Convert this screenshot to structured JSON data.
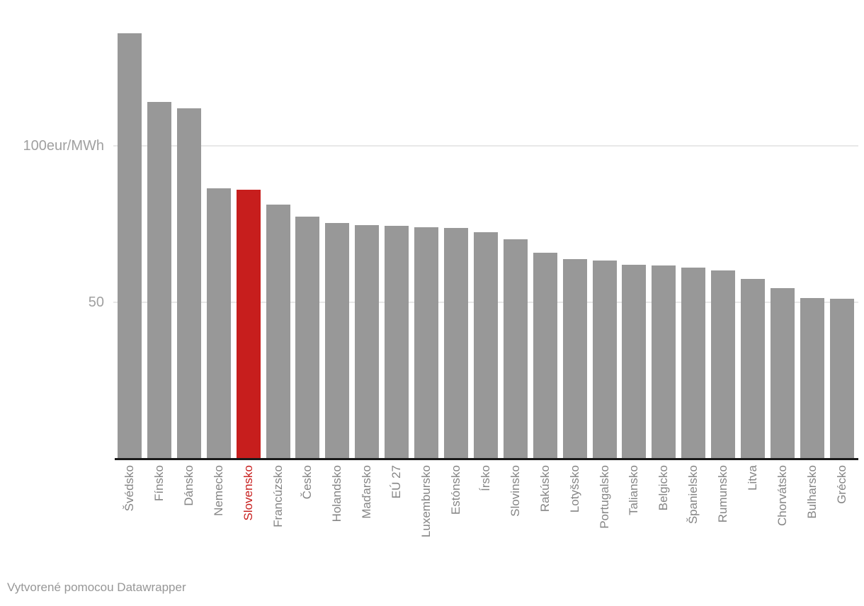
{
  "chart_data": {
    "type": "bar",
    "title": "",
    "xlabel": "",
    "ylabel": "",
    "unit": "eur/MWh",
    "categories": [
      "Švédsko",
      "Fínsko",
      "Dánsko",
      "Nemecko",
      "Slovensko",
      "Francúzsko",
      "Česko",
      "Holandsko",
      "Maďarsko",
      "EÚ 27",
      "Luxembursko",
      "Estónsko",
      "Írsko",
      "Slovinsko",
      "Rakúsko",
      "Lotyšsko",
      "Portugalsko",
      "Taliansko",
      "Belgicko",
      "Španielsko",
      "Rumunsko",
      "Litva",
      "Chorvátsko",
      "Bulharsko",
      "Grécko"
    ],
    "values": [
      136,
      114,
      112,
      86.5,
      86,
      81.2,
      77.4,
      75.3,
      74.7,
      74.4,
      74.1,
      73.7,
      72.3,
      70.1,
      65.9,
      63.7,
      63.3,
      62,
      61.7,
      61,
      60.2,
      57.4,
      54.5,
      51.3,
      51.1
    ],
    "ylim": [
      0,
      137
    ],
    "grid": "horizontal",
    "legend": "none",
    "y_ticks": [
      {
        "value": 50,
        "label": "50"
      },
      {
        "value": 100,
        "label": "100eur/MWh"
      }
    ],
    "bar_color": "#989898",
    "highlight": {
      "category": "Slovensko",
      "color": "#c71e1d"
    }
  },
  "footer": {
    "attribution": "Vytvorené pomocou Datawrapper"
  },
  "colors": {
    "background": "#ffffff",
    "bar": "#989898",
    "highlight": "#c71e1d",
    "gridline": "#e8e8e8",
    "axis_line": "#1a1a1a",
    "y_tick_label": "#a0a0a0",
    "x_tick_label": "#858585",
    "footer_text": "#979797"
  }
}
